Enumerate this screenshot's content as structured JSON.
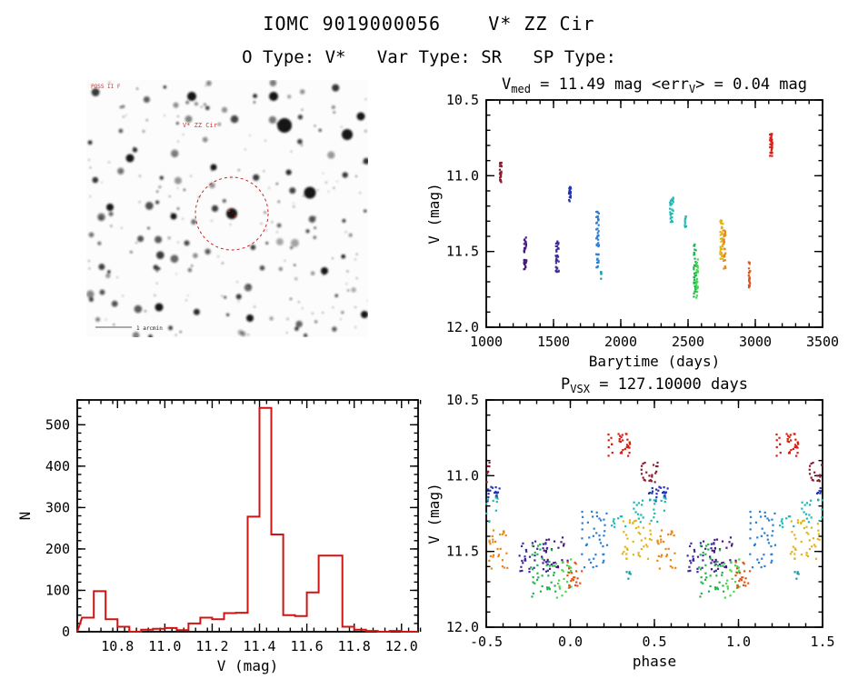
{
  "page": {
    "title": "IOMC 9019000056    V* ZZ Cir",
    "subtitle": "O Type: V*   Var Type: SR   SP Type:"
  },
  "finding_chart": {
    "target_label": "V* ZZ Cir",
    "corner_label": "POSS II F",
    "scale_label": "1 arcmin",
    "marker_color": "#cc2222"
  },
  "chart_data": [
    {
      "id": "light_curve",
      "type": "scatter",
      "title_segments": [
        {
          "t": "V"
        },
        {
          "t": "med",
          "sub": true
        },
        {
          "t": " = 11.49 mag  <err"
        },
        {
          "t": "V",
          "sub": true
        },
        {
          "t": "> = 0.04 mag"
        }
      ],
      "v_med_mag": 11.49,
      "err_v_mag": 0.04,
      "xlabel": "Barytime (days)",
      "ylabel": "V (mag)",
      "xlim": [
        1000,
        3500
      ],
      "ylim_top_bottom": [
        10.5,
        12.0
      ],
      "x_minor": 100,
      "y_minor": 0.1,
      "xticks": [
        {
          "v": 1000,
          "l": "1000"
        },
        {
          "v": 1500,
          "l": "1500"
        },
        {
          "v": 2000,
          "l": "2000"
        },
        {
          "v": 2500,
          "l": "2500"
        },
        {
          "v": 3000,
          "l": "3000"
        },
        {
          "v": 3500,
          "l": "3500"
        }
      ],
      "yticks": [
        {
          "v": 10.5,
          "l": "10.5"
        },
        {
          "v": 11.0,
          "l": "11.0"
        },
        {
          "v": 11.5,
          "l": "11.5"
        },
        {
          "v": 12.0,
          "l": "12.0"
        }
      ],
      "clusters": [
        {
          "t": 1108,
          "dt": 9,
          "v_lo": 10.91,
          "v_hi": 11.05,
          "n": 22,
          "color": "#8c1c30"
        },
        {
          "t": 1290,
          "dt": 12,
          "v_lo": 11.38,
          "v_hi": 11.63,
          "n": 30,
          "color": "#47187f"
        },
        {
          "t": 1528,
          "dt": 14,
          "v_lo": 11.42,
          "v_hi": 11.64,
          "n": 32,
          "color": "#3a2a9b"
        },
        {
          "t": 1622,
          "dt": 9,
          "v_lo": 11.07,
          "v_hi": 11.17,
          "n": 24,
          "color": "#2334b8"
        },
        {
          "t": 1828,
          "dt": 12,
          "v_lo": 11.22,
          "v_hi": 11.62,
          "n": 40,
          "color": "#2c7ed2"
        },
        {
          "t": 1852,
          "dt": 5,
          "v_lo": 11.6,
          "v_hi": 11.68,
          "n": 5,
          "color": "#1899a4"
        },
        {
          "t": 2378,
          "dt": 16,
          "v_lo": 11.13,
          "v_hi": 11.31,
          "n": 26,
          "color": "#1cb8b4"
        },
        {
          "t": 2482,
          "dt": 7,
          "v_lo": 11.26,
          "v_hi": 11.34,
          "n": 9,
          "color": "#1cb8b4"
        },
        {
          "t": 2552,
          "dt": 12,
          "v_lo": 11.43,
          "v_hi": 11.8,
          "n": 38,
          "color": "#22b44e"
        },
        {
          "t": 2568,
          "dt": 8,
          "v_lo": 11.55,
          "v_hi": 11.84,
          "n": 22,
          "color": "#46d84e"
        },
        {
          "t": 2750,
          "dt": 14,
          "v_lo": 11.29,
          "v_hi": 11.55,
          "n": 40,
          "color": "#e2b41c"
        },
        {
          "t": 2772,
          "dt": 10,
          "v_lo": 11.36,
          "v_hi": 11.62,
          "n": 28,
          "color": "#e8861c"
        },
        {
          "t": 2958,
          "dt": 9,
          "v_lo": 11.57,
          "v_hi": 11.77,
          "n": 22,
          "color": "#e05418"
        },
        {
          "t": 3118,
          "dt": 11,
          "v_lo": 10.72,
          "v_hi": 10.87,
          "n": 34,
          "color": "#da1c12"
        }
      ]
    },
    {
      "id": "histogram",
      "type": "bar",
      "xlabel": "V (mag)",
      "ylabel": "N",
      "xlim": [
        10.63,
        12.07
      ],
      "ylim_top_bottom": [
        560,
        0
      ],
      "x_minor": 0.05,
      "y_minor": 20,
      "color": "#d01414",
      "bin_width": 0.05,
      "xticks": [
        {
          "v": 10.8,
          "l": "10.8"
        },
        {
          "v": 11.0,
          "l": "11.0"
        },
        {
          "v": 11.2,
          "l": "11.2"
        },
        {
          "v": 11.4,
          "l": "11.4"
        },
        {
          "v": 11.6,
          "l": "11.6"
        },
        {
          "v": 11.8,
          "l": "11.8"
        },
        {
          "v": 12.0,
          "l": "12.0"
        }
      ],
      "yticks": [
        {
          "v": 0,
          "l": "0"
        },
        {
          "v": 100,
          "l": "100"
        },
        {
          "v": 200,
          "l": "200"
        },
        {
          "v": 300,
          "l": "300"
        },
        {
          "v": 400,
          "l": "400"
        },
        {
          "v": 500,
          "l": "500"
        }
      ],
      "bins": [
        {
          "x": 10.65,
          "n": 34
        },
        {
          "x": 10.7,
          "n": 98
        },
        {
          "x": 10.75,
          "n": 30
        },
        {
          "x": 10.8,
          "n": 12
        },
        {
          "x": 10.85,
          "n": 0
        },
        {
          "x": 10.9,
          "n": 5
        },
        {
          "x": 10.95,
          "n": 7
        },
        {
          "x": 11.0,
          "n": 9
        },
        {
          "x": 11.05,
          "n": 4
        },
        {
          "x": 11.1,
          "n": 20
        },
        {
          "x": 11.15,
          "n": 34
        },
        {
          "x": 11.2,
          "n": 30
        },
        {
          "x": 11.25,
          "n": 45
        },
        {
          "x": 11.3,
          "n": 46
        },
        {
          "x": 11.35,
          "n": 278
        },
        {
          "x": 11.4,
          "n": 541
        },
        {
          "x": 11.45,
          "n": 235
        },
        {
          "x": 11.5,
          "n": 40
        },
        {
          "x": 11.55,
          "n": 38
        },
        {
          "x": 11.6,
          "n": 95
        },
        {
          "x": 11.65,
          "n": 184
        },
        {
          "x": 11.7,
          "n": 184
        },
        {
          "x": 11.75,
          "n": 12
        },
        {
          "x": 11.8,
          "n": 5
        },
        {
          "x": 11.85,
          "n": 2
        },
        {
          "x": 11.9,
          "n": 0
        },
        {
          "x": 11.95,
          "n": 2
        },
        {
          "x": 12.0,
          "n": 0
        }
      ]
    },
    {
      "id": "phase_curve",
      "type": "scatter",
      "title_segments": [
        {
          "t": "P"
        },
        {
          "t": "VSX",
          "sub": true
        },
        {
          "t": " = 127.10000 days"
        }
      ],
      "period_days": 127.1,
      "period_label": "127.10000",
      "xlabel": "phase",
      "ylabel": "V (mag)",
      "xlim": [
        -0.5,
        1.5
      ],
      "ylim_top_bottom": [
        10.5,
        12.0
      ],
      "x_minor": 0.1,
      "y_minor": 0.1,
      "fold": {
        "period": 127.1,
        "epoch": 30.3
      },
      "use_clusters_from": "light_curve",
      "xticks": [
        {
          "v": -0.5,
          "l": "-0.5"
        },
        {
          "v": 0.0,
          "l": "0.0"
        },
        {
          "v": 0.5,
          "l": "0.5"
        },
        {
          "v": 1.0,
          "l": "1.0"
        },
        {
          "v": 1.5,
          "l": "1.5"
        }
      ],
      "yticks": [
        {
          "v": 10.5,
          "l": "10.5"
        },
        {
          "v": 11.0,
          "l": "11.0"
        },
        {
          "v": 11.5,
          "l": "11.5"
        },
        {
          "v": 12.0,
          "l": "12.0"
        }
      ]
    }
  ]
}
